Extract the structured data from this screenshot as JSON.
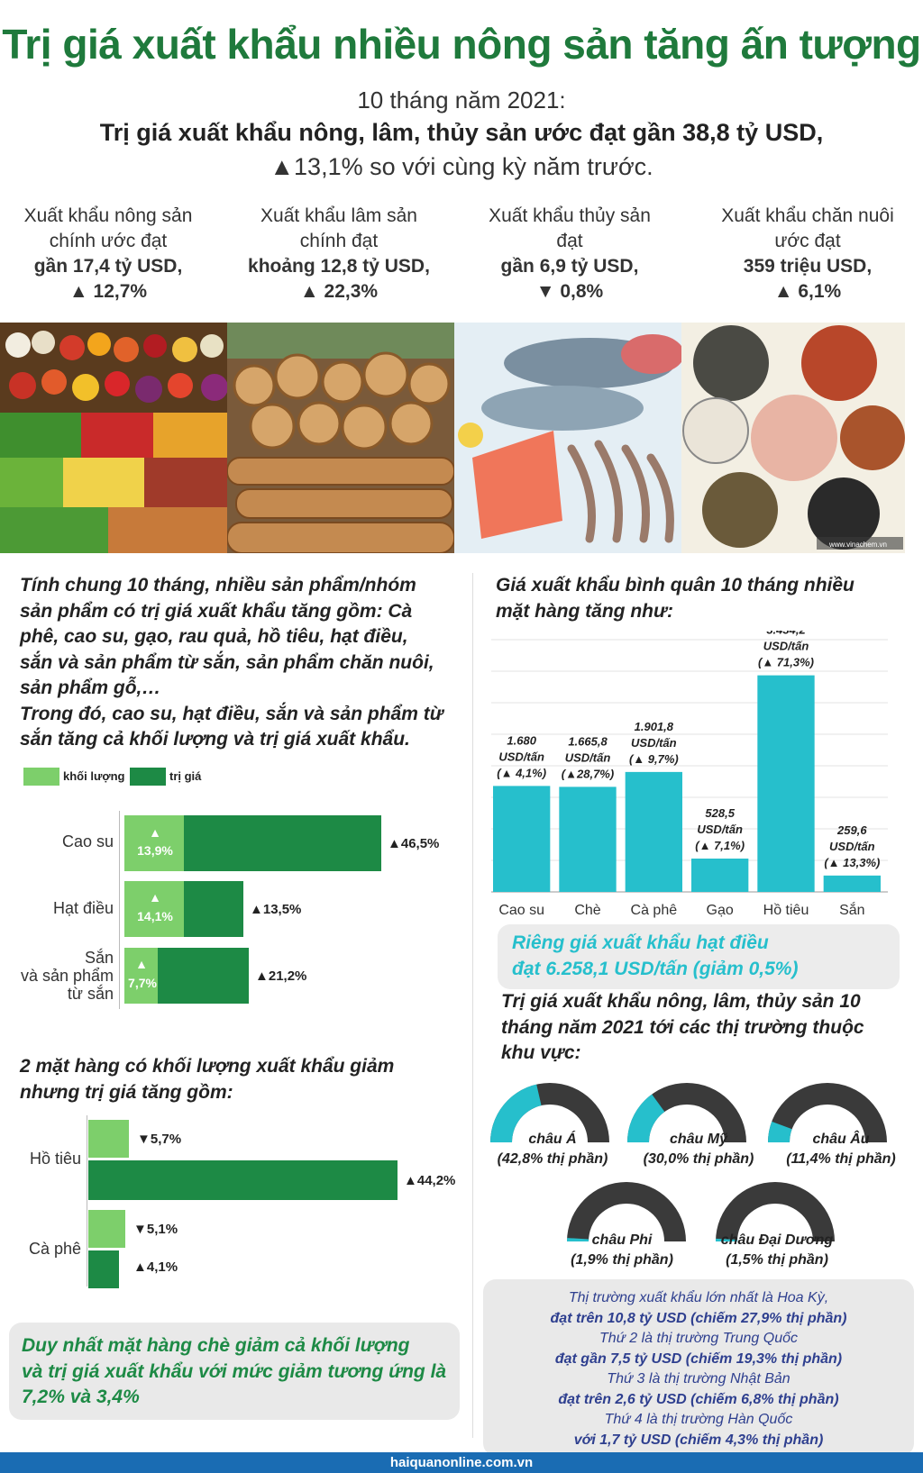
{
  "header": {
    "title": "Trị giá xuất khẩu nhiều nông sản tăng ấn tượng",
    "period": "10 tháng năm 2021:",
    "headline": "Trị giá xuất khẩu nông, lâm, thủy sản ước đạt gần 38,8 tỷ USD,",
    "growth": "▲13,1% so với cùng kỳ năm trước."
  },
  "stats": [
    {
      "l1": "Xuất khẩu nông sản",
      "l2": "chính ước đạt",
      "value": "gần 17,4 tỷ USD,",
      "change": "▲ 12,7%"
    },
    {
      "l1": "Xuất khẩu lâm sản",
      "l2": "chính đạt",
      "value": "khoảng 12,8 tỷ USD,",
      "change": "▲ 22,3%"
    },
    {
      "l1": "Xuất khẩu thủy sản",
      "l2": "đạt",
      "value": "gần 6,9 tỷ USD,",
      "change": "▼ 0,8%"
    },
    {
      "l1": "Xuất khẩu chăn nuôi",
      "l2": "ước đạt",
      "value": "359 triệu USD,",
      "change": "▲ 6,1%"
    }
  ],
  "photo_credit": "www.vinachem.vn",
  "left": {
    "intro1": "Tính chung 10 tháng, nhiều sản phẩm/nhóm",
    "intro2": "sản phẩm có trị giá xuất khẩu tăng gồm: Cà",
    "intro3": "phê, cao su, gạo, rau quả, hồ tiêu, hạt điều,",
    "intro4": "sắn và sản phẩm từ sắn, sản phẩm chăn nuôi,",
    "intro5": "sản phẩm gỗ,…",
    "intro6": "Trong đó, cao su, hạt điều, sắn và sản phẩm từ",
    "intro7": "sắn tăng cả khối lượng và trị giá xuất khẩu.",
    "legend_volume": "khối lượng",
    "legend_value": "trị giá",
    "section2_l1": "2 mặt hàng có khối lượng xuất khẩu giảm",
    "section2_l2": "nhưng trị giá tăng gồm:",
    "note_l1": "Duy nhất mặt hàng chè giảm cả khối lượng",
    "note_l2": "và trị giá xuất khẩu với mức giảm tương ứng là",
    "note_l3": "7,2% và 3,4%"
  },
  "right": {
    "price_title1": "Giá xuất khẩu bình quân 10 tháng nhiều",
    "price_title2": "mặt hàng tăng như:",
    "cashew_l1": "Riêng giá xuất khẩu hạt điều",
    "cashew_l2": "đạt 6.258,1 USD/tấn (giảm 0,5%)",
    "market_title1": "Trị giá xuất khẩu nông, lâm, thủy sản 10",
    "market_title2": "tháng năm 2021 tới các thị trường thuộc",
    "market_title3": "khu vực:",
    "m1": "Thị trường xuất khẩu lớn nhất là Hoa Kỳ,",
    "m2": "đạt trên 10,8 tỷ USD (chiếm 27,9% thị phần)",
    "m3": "Thứ 2 là thị trường Trung Quốc",
    "m4": "đạt gần 7,5 tỷ USD (chiếm 19,3% thị phần)",
    "m5": "Thứ 3 là thị trường Nhật Bản",
    "m6": "đạt trên 2,6 tỷ USD (chiếm 6,8% thị phần)",
    "m7": "Thứ 4 là thị trường Hàn Quốc",
    "m8": "với 1,7 tỷ USD (chiếm 4,3% thị phần)"
  },
  "footer": "haiquanonline.com.vn",
  "colors": {
    "title_green": "#1f7a3c",
    "light_green": "#7dcf6b",
    "dark_green": "#1d8a45",
    "teal": "#26bfcc",
    "donut_dark": "#3a3a3a"
  },
  "chart_data": [
    {
      "type": "bar",
      "orientation": "horizontal",
      "categories": [
        "Cao su",
        "Hạt điều",
        "Sắn và sản phẩm từ sắn"
      ],
      "series": [
        {
          "name": "khối lượng",
          "labels": [
            "13,9%",
            "14,1%",
            "7,7%"
          ],
          "values": [
            13.9,
            14.1,
            7.7
          ]
        },
        {
          "name": "trị giá",
          "labels": [
            "▲46,5%",
            "▲13,5%",
            "▲21,2%"
          ],
          "values": [
            46.5,
            13.5,
            21.2
          ]
        }
      ]
    },
    {
      "type": "bar",
      "orientation": "horizontal",
      "categories": [
        "Hồ tiêu",
        "Cà phê"
      ],
      "series": [
        {
          "name": "khối lượng",
          "labels": [
            "▼5,7%",
            "▼5,1%"
          ],
          "values": [
            -5.7,
            -5.1
          ]
        },
        {
          "name": "trị giá",
          "labels": [
            "▲44,2%",
            "▲4,1%"
          ],
          "values": [
            44.2,
            4.1
          ]
        }
      ]
    },
    {
      "type": "bar",
      "categories": [
        "Cao su",
        "Chè",
        "Cà phê",
        "Gạo",
        "Hồ tiêu",
        "Sắn"
      ],
      "values": [
        1680,
        1665.8,
        1901.8,
        528.5,
        3434.2,
        259.6
      ],
      "labels": [
        {
          "v": "1.680",
          "u": "USD/tấn",
          "c": "(▲ 4,1%)"
        },
        {
          "v": "1.665,8",
          "u": "USD/tấn",
          "c": "(▲28,7%)"
        },
        {
          "v": "1.901,8",
          "u": "USD/tấn",
          "c": "(▲ 9,7%)"
        },
        {
          "v": "528,5",
          "u": "USD/tấn",
          "c": "(▲ 7,1%)"
        },
        {
          "v": "3.434,2",
          "u": "USD/tấn",
          "c": "(▲ 71,3%)"
        },
        {
          "v": "259,6",
          "u": "USD/tấn",
          "c": "(▲ 13,3%)"
        }
      ],
      "ylim": [
        0,
        4000
      ]
    },
    {
      "type": "pie",
      "style": "semi-donut",
      "items": [
        {
          "name": "châu Á",
          "label": "(42,8% thị phần)",
          "value": 42.8
        },
        {
          "name": "châu Mỹ",
          "label": "(30,0% thị phần)",
          "value": 30.0
        },
        {
          "name": "châu Âu",
          "label": "(11,4% thị phần)",
          "value": 11.4
        },
        {
          "name": "châu Phi",
          "label": "(1,9% thị phần)",
          "value": 1.9
        },
        {
          "name": "châu Đại Dương",
          "label": "(1,5% thị phần)",
          "value": 1.5
        }
      ]
    }
  ]
}
